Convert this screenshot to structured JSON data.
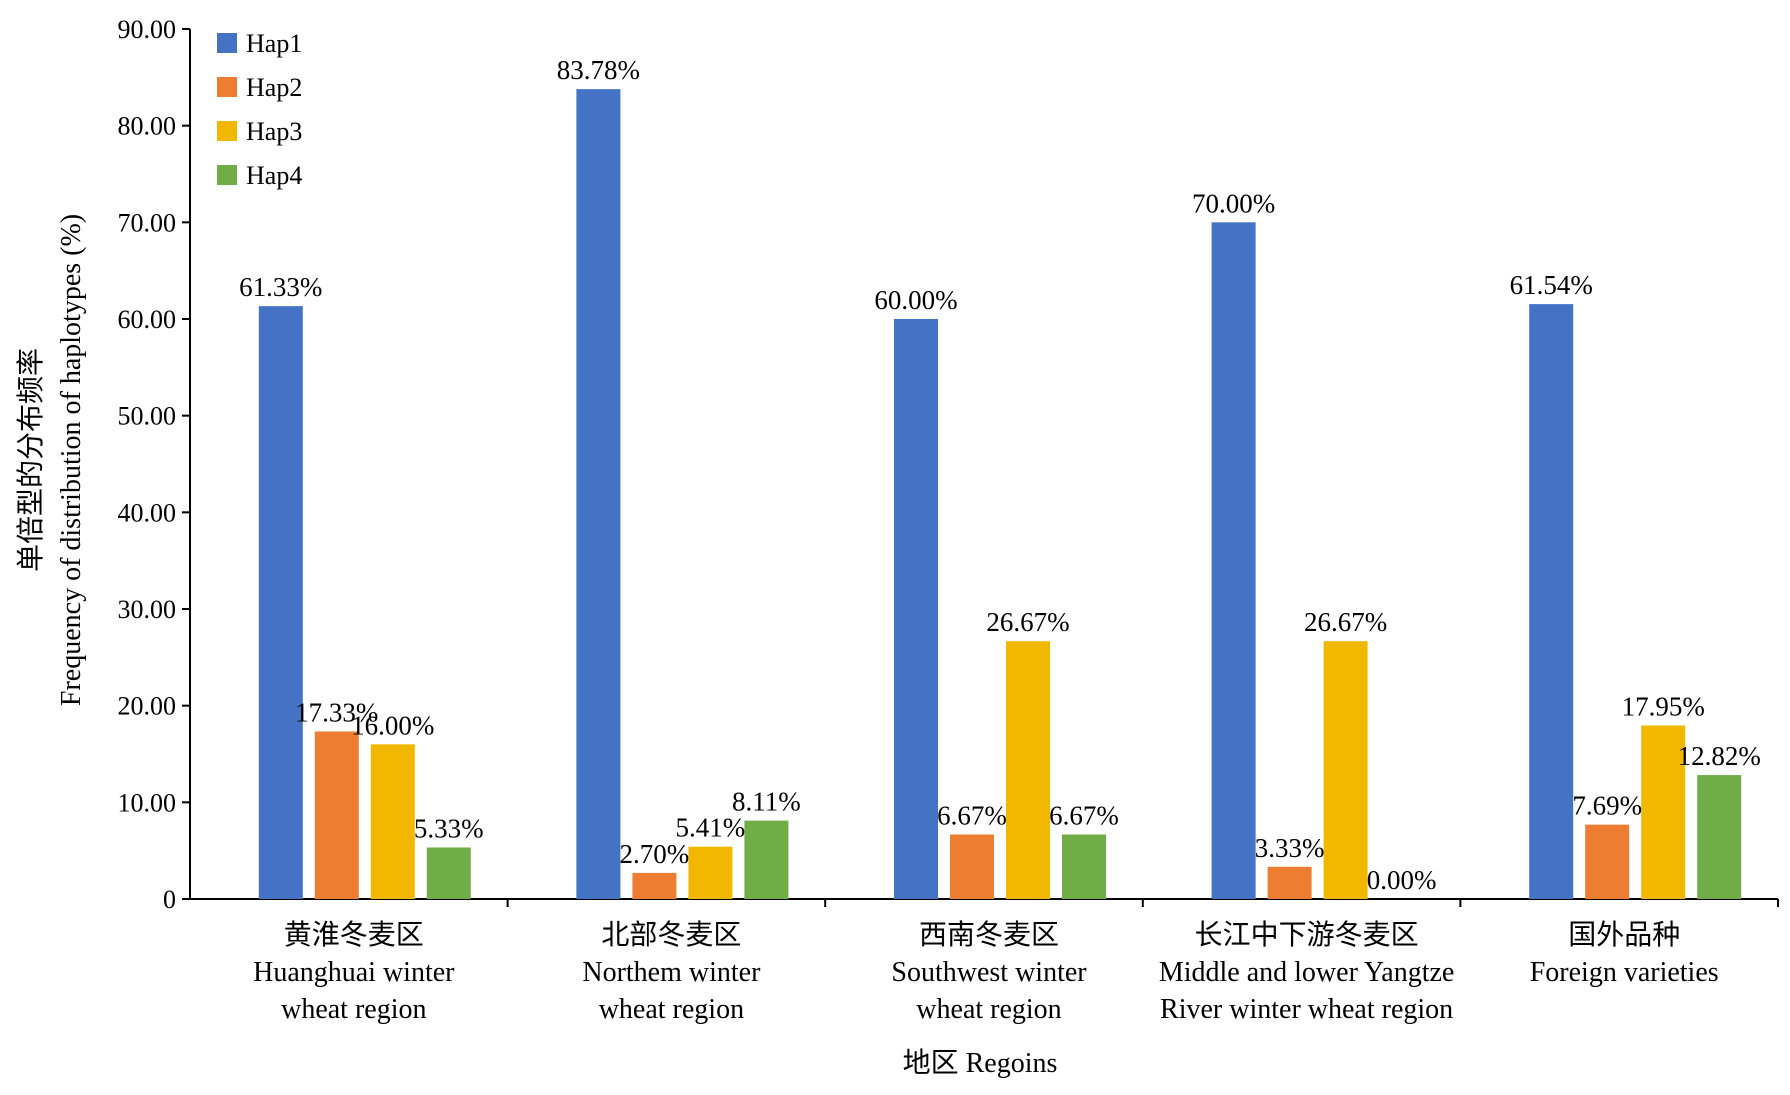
{
  "chart_data": {
    "type": "bar",
    "ylabel_lines": [
      "单倍型的分布频率",
      "Frequency of distribution of haplotypes (%)"
    ],
    "xlabel": "地区 Regoins",
    "ylim": [
      0,
      90
    ],
    "y_ticks": [
      "0",
      "10.00",
      "20.00",
      "30.00",
      "40.00",
      "50.00",
      "60.00",
      "70.00",
      "80.00",
      "90.00"
    ],
    "legend_position": "top-left",
    "categories": [
      [
        "黄淮冬麦区",
        "Huanghuai winter",
        "wheat region"
      ],
      [
        "北部冬麦区",
        "Northem winter",
        "wheat region"
      ],
      [
        "西南冬麦区",
        "Southwest winter",
        "wheat region"
      ],
      [
        "长江中下游冬麦区",
        "Middle and lower Yangtze",
        "River winter wheat region"
      ],
      [
        "国外品种",
        "Foreign varieties"
      ]
    ],
    "series": [
      {
        "name": "Hap1",
        "color": "#4472C4",
        "values": [
          61.33,
          83.78,
          60.0,
          70.0,
          61.54
        ],
        "labels": [
          "61.33%",
          "83.78%",
          "60.00%",
          "70.00%",
          "61.54%"
        ]
      },
      {
        "name": "Hap2",
        "color": "#ED7D31",
        "values": [
          17.33,
          2.7,
          6.67,
          3.33,
          7.69
        ],
        "labels": [
          "17.33%",
          "2.70%",
          "6.67%",
          "3.33%",
          "7.69%"
        ]
      },
      {
        "name": "Hap3",
        "color": "#F2B800",
        "values": [
          16.0,
          5.41,
          26.67,
          26.67,
          17.95
        ],
        "labels": [
          "16.00%",
          "5.41%",
          "26.67%",
          "26.67%",
          "17.95%"
        ]
      },
      {
        "name": "Hap4",
        "color": "#70AD47",
        "values": [
          5.33,
          8.11,
          6.67,
          0.0,
          12.82
        ],
        "labels": [
          "5.33%",
          "8.11%",
          "6.67%",
          "0.00%",
          "12.82%"
        ]
      }
    ]
  }
}
